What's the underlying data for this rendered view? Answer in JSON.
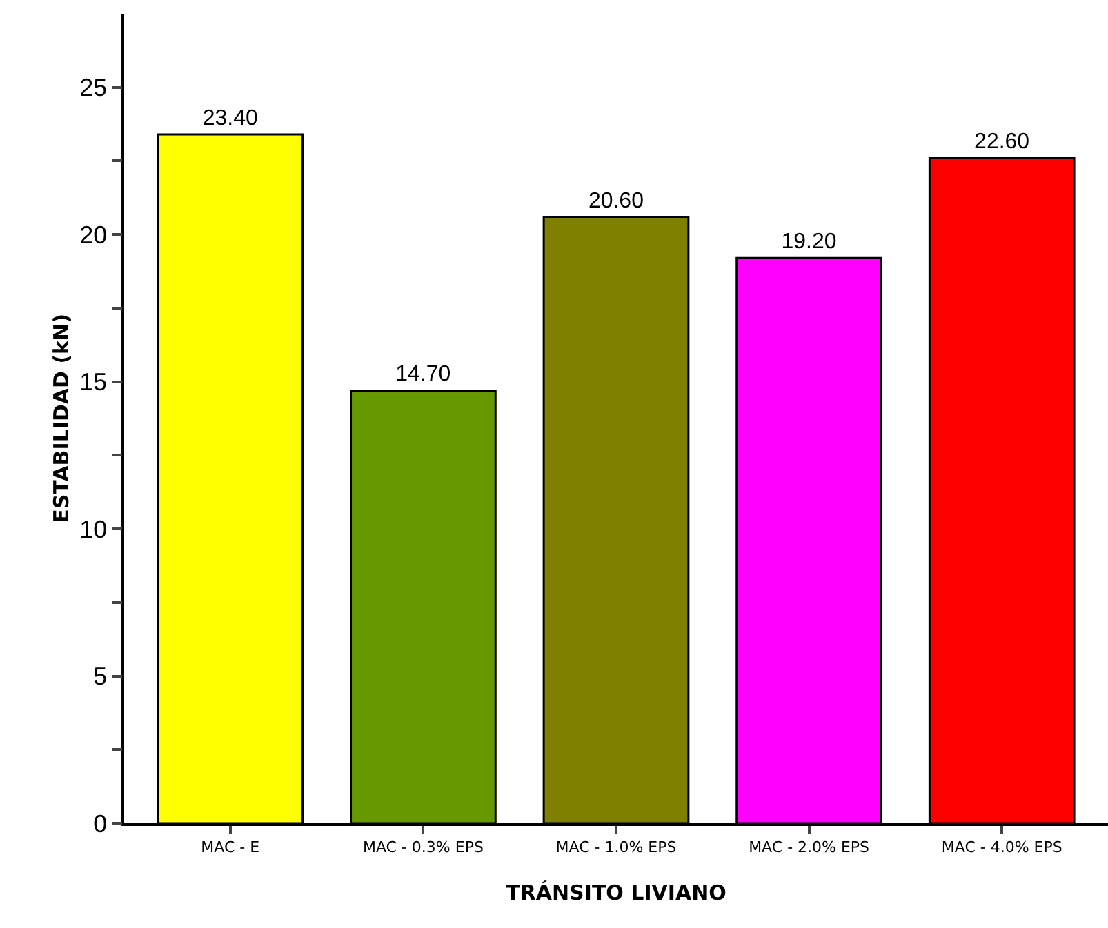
{
  "chart_data": {
    "type": "bar",
    "xlabel": "TRÁNSITO LIVIANO",
    "ylabel": "ESTABILIDAD (kN)",
    "categories": [
      "MAC - E",
      "MAC - 0.3% EPS",
      "MAC - 1.0% EPS",
      "MAC - 2.0% EPS",
      "MAC - 4.0% EPS"
    ],
    "values": [
      23.4,
      14.7,
      20.6,
      19.2,
      22.6
    ],
    "colors": [
      "#ffff00",
      "#669900",
      "#808000",
      "#ff00ff",
      "#ff0000"
    ],
    "value_labels": [
      "23.40",
      "14.70",
      "20.60",
      "19.20",
      "22.60"
    ],
    "ylim": [
      0,
      27.5
    ],
    "yticks": [
      0,
      {
        "value": 2.5,
        "label": null
      },
      5,
      {
        "value": 7.5,
        "label": null
      },
      10,
      {
        "value": 12.5,
        "label": null
      },
      15,
      {
        "value": 17.5,
        "label": null
      },
      20,
      {
        "value": 22.5,
        "label": null
      },
      25
    ],
    "grid": false
  }
}
